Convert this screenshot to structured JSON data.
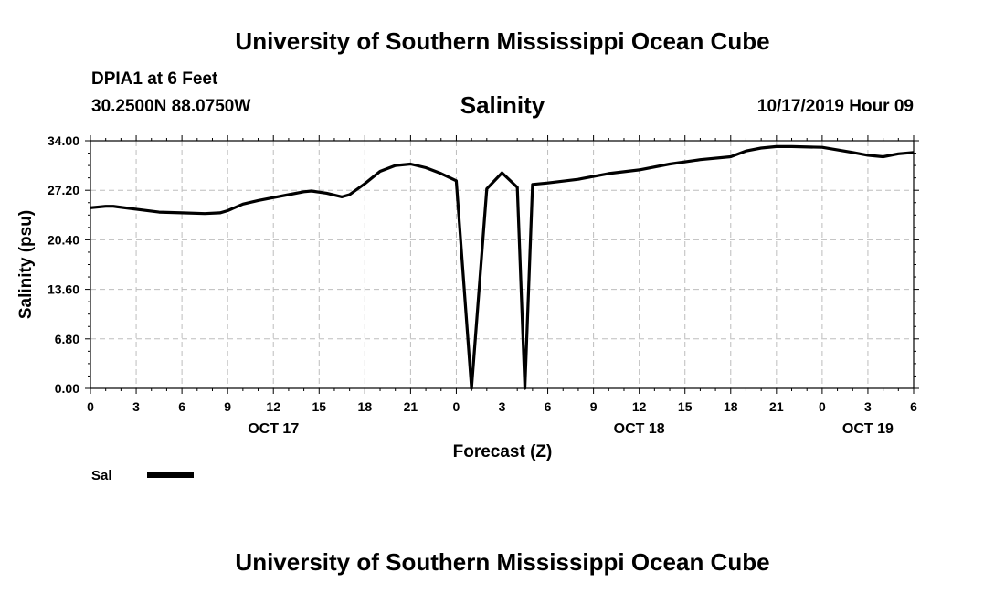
{
  "header": {
    "title_top": "University of Southern Mississippi Ocean Cube",
    "station": "DPIA1 at 6 Feet",
    "coords": "30.2500N 88.0750W",
    "datetime": "10/17/2019 Hour 09"
  },
  "footer": {
    "title_bottom": "University of Southern Mississippi Ocean Cube"
  },
  "chart_data": {
    "type": "line",
    "title": "Salinity",
    "xlabel": "Forecast (Z)",
    "ylabel": "Salinity (psu)",
    "ylim": [
      0,
      34
    ],
    "xlim": [
      0,
      54
    ],
    "yticks": [
      "0.00",
      "6.80",
      "13.60",
      "20.40",
      "27.20",
      "34.00"
    ],
    "xticks": [
      "0",
      "3",
      "6",
      "9",
      "12",
      "15",
      "18",
      "21",
      "0",
      "3",
      "6",
      "9",
      "12",
      "15",
      "18",
      "21",
      "0",
      "3",
      "6"
    ],
    "day_labels": [
      {
        "label": "OCT 17",
        "hour": 12
      },
      {
        "label": "OCT 18",
        "hour": 36
      },
      {
        "label": "OCT 19",
        "hour": 51
      }
    ],
    "grid": true,
    "legend_position": "bottom-left",
    "series": [
      {
        "name": "Sal",
        "color": "#000000",
        "x": [
          0,
          1,
          1.5,
          3,
          4.5,
          6,
          7.5,
          8.5,
          9,
          10,
          11,
          12,
          13,
          14,
          14.5,
          15.5,
          16.5,
          17,
          18,
          19,
          20,
          21,
          22,
          23,
          24,
          25,
          26,
          27,
          28,
          28.5,
          29,
          30,
          32,
          34,
          36,
          38,
          40,
          42,
          43,
          44,
          45,
          46,
          48,
          50,
          51,
          52,
          53,
          54
        ],
        "y": [
          24.8,
          25.0,
          25.0,
          24.6,
          24.2,
          24.1,
          24.0,
          24.1,
          24.4,
          25.3,
          25.8,
          26.2,
          26.6,
          27.0,
          27.1,
          26.8,
          26.3,
          26.6,
          28.1,
          29.8,
          30.6,
          30.8,
          30.3,
          29.5,
          28.5,
          0.0,
          27.4,
          29.6,
          27.6,
          0.0,
          28.0,
          28.2,
          28.7,
          29.5,
          30.0,
          30.8,
          31.4,
          31.8,
          32.6,
          33.0,
          33.2,
          33.2,
          33.1,
          32.4,
          32.0,
          31.8,
          32.2,
          32.4
        ]
      }
    ]
  }
}
